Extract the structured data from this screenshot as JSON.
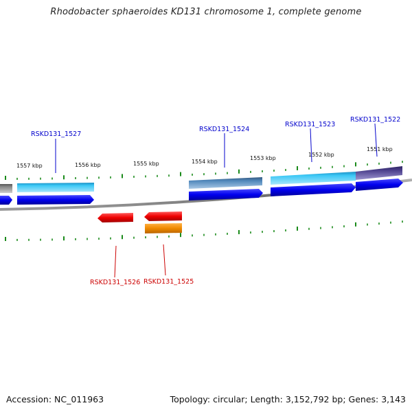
{
  "title": "Rhodobacter sphaeroides KD131 chromosome 1, complete genome",
  "footer": {
    "accession": "Accession: NC_011963",
    "summary": "Topology: circular; Length: 3,152,792 bp; Genes: 3,143"
  },
  "colors": {
    "backbone": "#7d7d7d",
    "tick": "#1a8a1a",
    "forward_label": "#0000cc",
    "reverse_label": "#cc0000",
    "cds_blue": "#0000ee",
    "gene_cyan": "#22b7ee",
    "gene_steel": "#4a7fb0",
    "gene_purple": "#4b3f8c",
    "gene_gray": "#777777",
    "reverse_red": "#ee0000",
    "reverse_orange": "#f08a00"
  },
  "scale_labels": [
    "1557 kbp",
    "1556 kbp",
    "1555 kbp",
    "1554 kbp",
    "1553 kbp",
    "1552 kbp",
    "1551 kbp"
  ],
  "forward_gene_labels": [
    "RSKD131_1527",
    "RSKD131_1524",
    "RSKD131_1523",
    "RSKD131_1522"
  ],
  "reverse_gene_labels": [
    "RSKD131_1526",
    "RSKD131_1525"
  ]
}
